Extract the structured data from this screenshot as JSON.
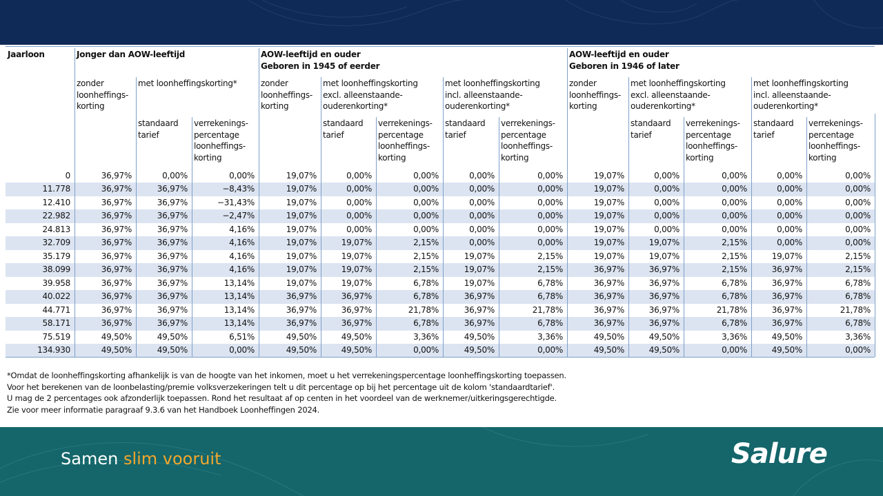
{
  "header": {
    "first_column": "Jaarloon",
    "groups": [
      [
        "Jonger dan AOW-leeftijd"
      ],
      [
        "AOW-leeftijd en ouder",
        "Geboren in 1945 of eerder"
      ],
      [
        "AOW-leeftijd en ouder",
        "Geboren in 1946 of later"
      ]
    ],
    "level2": [
      [
        "zonder",
        "loonheffings-",
        "korting"
      ],
      [
        "met loonheffingskorting*"
      ],
      [
        "zonder",
        "loonheffings-",
        "korting"
      ],
      [
        "met loonheffingskorting",
        "excl. alleenstaande-",
        "ouderenkorting*"
      ],
      [
        "met loonheffingskorting",
        "incl. alleenstaande-",
        "ouderenkorting*"
      ],
      [
        "zonder",
        "loonheffings-",
        "korting"
      ],
      [
        "met loonheffingskorting",
        "excl. alleenstaande-",
        "ouderenkorting*"
      ],
      [
        "met loonheffingskorting",
        "incl. alleenstaande-",
        "ouderenkorting*"
      ]
    ],
    "level3": [
      [
        "standaard",
        "tarief"
      ],
      [
        "verrekenings-",
        "percentage",
        "loonheffings-",
        "korting"
      ],
      [
        "standaard",
        "tarief"
      ],
      [
        "verrekenings-",
        "percentage",
        "loonheffings-",
        "korting"
      ],
      [
        "standaard",
        "tarief"
      ],
      [
        "verrekenings-",
        "percentage",
        "loonheffings-",
        "korting"
      ],
      [
        "standaard",
        "tarief"
      ],
      [
        "verrekenings-",
        "percentage",
        "loonheffings-",
        "korting"
      ],
      [
        "standaard",
        "tarief"
      ],
      [
        "verrekenings-",
        "percentage",
        "loonheffings-",
        "korting"
      ]
    ]
  },
  "table": {
    "rows": [
      [
        "0",
        "36,97%",
        "0,00%",
        "0,00%",
        "19,07%",
        "0,00%",
        "0,00%",
        "0,00%",
        "0,00%",
        "19,07%",
        "0,00%",
        "0,00%",
        "0,00%",
        "0,00%"
      ],
      [
        "11.778",
        "36,97%",
        "36,97%",
        "−8,43%",
        "19,07%",
        "0,00%",
        "0,00%",
        "0,00%",
        "0,00%",
        "19,07%",
        "0,00%",
        "0,00%",
        "0,00%",
        "0,00%"
      ],
      [
        "12.410",
        "36,97%",
        "36,97%",
        "−31,43%",
        "19,07%",
        "0,00%",
        "0,00%",
        "0,00%",
        "0,00%",
        "19,07%",
        "0,00%",
        "0,00%",
        "0,00%",
        "0,00%"
      ],
      [
        "22.982",
        "36,97%",
        "36,97%",
        "−2,47%",
        "19,07%",
        "0,00%",
        "0,00%",
        "0,00%",
        "0,00%",
        "19,07%",
        "0,00%",
        "0,00%",
        "0,00%",
        "0,00%"
      ],
      [
        "24.813",
        "36,97%",
        "36,97%",
        "4,16%",
        "19,07%",
        "0,00%",
        "0,00%",
        "0,00%",
        "0,00%",
        "19,07%",
        "0,00%",
        "0,00%",
        "0,00%",
        "0,00%"
      ],
      [
        "32.709",
        "36,97%",
        "36,97%",
        "4,16%",
        "19,07%",
        "19,07%",
        "2,15%",
        "0,00%",
        "0,00%",
        "19,07%",
        "19,07%",
        "2,15%",
        "0,00%",
        "0,00%"
      ],
      [
        "35.179",
        "36,97%",
        "36,97%",
        "4,16%",
        "19,07%",
        "19,07%",
        "2,15%",
        "19,07%",
        "2,15%",
        "19,07%",
        "19,07%",
        "2,15%",
        "19,07%",
        "2,15%"
      ],
      [
        "38.099",
        "36,97%",
        "36,97%",
        "4,16%",
        "19,07%",
        "19,07%",
        "2,15%",
        "19,07%",
        "2,15%",
        "36,97%",
        "36,97%",
        "2,15%",
        "36,97%",
        "2,15%"
      ],
      [
        "39.958",
        "36,97%",
        "36,97%",
        "13,14%",
        "19,07%",
        "19,07%",
        "6,78%",
        "19,07%",
        "6,78%",
        "36,97%",
        "36,97%",
        "6,78%",
        "36,97%",
        "6,78%"
      ],
      [
        "40.022",
        "36,97%",
        "36,97%",
        "13,14%",
        "36,97%",
        "36,97%",
        "6,78%",
        "36,97%",
        "6,78%",
        "36,97%",
        "36,97%",
        "6,78%",
        "36,97%",
        "6,78%"
      ],
      [
        "44.771",
        "36,97%",
        "36,97%",
        "13,14%",
        "36,97%",
        "36,97%",
        "21,78%",
        "36,97%",
        "21,78%",
        "36,97%",
        "36,97%",
        "21,78%",
        "36,97%",
        "21,78%"
      ],
      [
        "58.171",
        "36,97%",
        "36,97%",
        "13,14%",
        "36,97%",
        "36,97%",
        "6,78%",
        "36,97%",
        "6,78%",
        "36,97%",
        "36,97%",
        "6,78%",
        "36,97%",
        "6,78%"
      ],
      [
        "75.519",
        "49,50%",
        "49,50%",
        "6,51%",
        "49,50%",
        "49,50%",
        "3,36%",
        "49,50%",
        "3,36%",
        "49,50%",
        "49,50%",
        "3,36%",
        "49,50%",
        "3,36%"
      ],
      [
        "134.930",
        "49,50%",
        "49,50%",
        "0,00%",
        "49,50%",
        "49,50%",
        "0,00%",
        "49,50%",
        "0,00%",
        "49,50%",
        "49,50%",
        "0,00%",
        "49,50%",
        "0,00%"
      ]
    ]
  },
  "footnotes": [
    "*Omdat de loonheffingskorting afhankelijk is van de hoogte van het inkomen, moet u het verrekeningspercentage loonheffingskorting toepassen.",
    "Voor het berekenen van de loonbelasting/premie volksverzekeringen telt u dit percentage op bij het percentage uit de kolom 'standaardtarief'.",
    "U mag de 2 percentages ook afzonderlijk toepassen. Rond het resultaat af op centen in het voordeel van de werknemer/uitkeringsgerechtigde.",
    "Zie voor meer informatie paragraaf 9.3.6 van het Handboek Loonheffingen 2024."
  ],
  "footer": {
    "slogan_start": "Samen",
    "slogan_accent": "slim vooruit",
    "logo": "Salure"
  }
}
